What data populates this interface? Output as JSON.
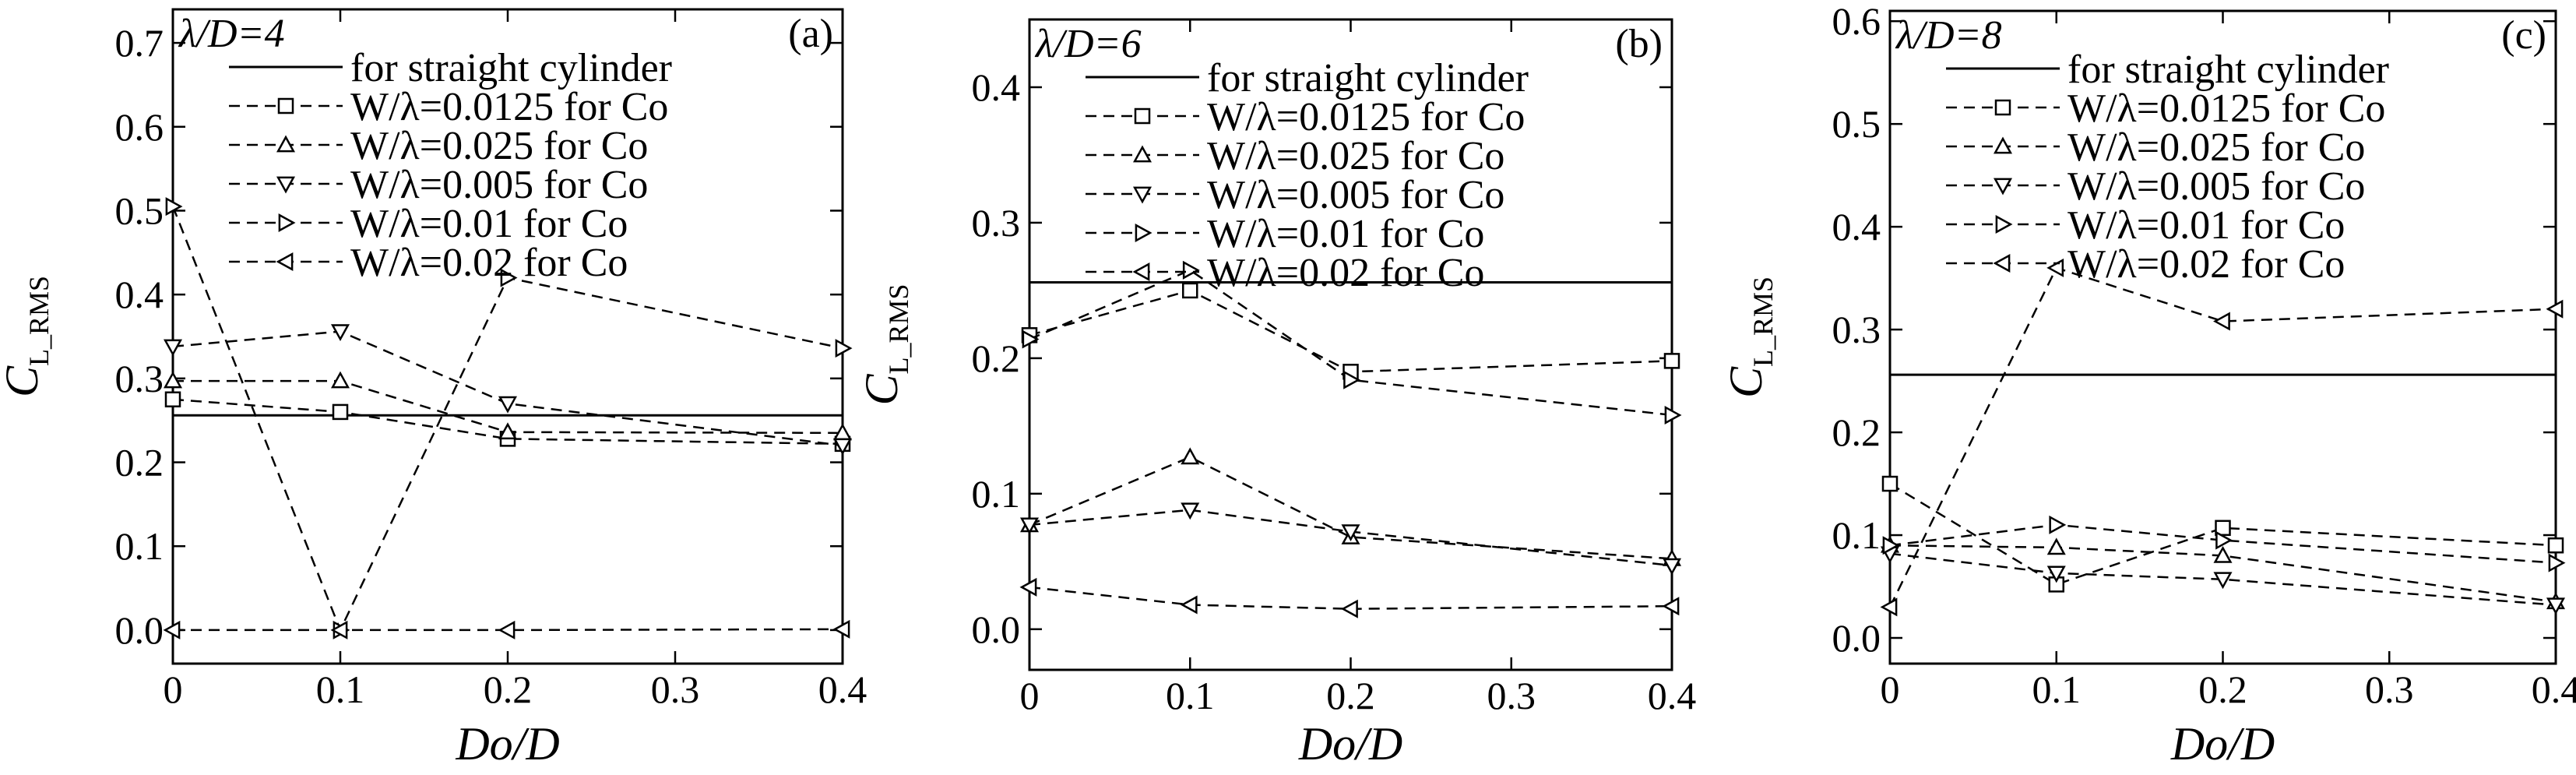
{
  "chart_data": [
    {
      "type": "line",
      "title": "λ/D=4",
      "panel_label": "(a)",
      "xlabel": "Do/D",
      "ylabel": "C",
      "ylabel_sub": "L_RMS",
      "xlim": [
        0,
        0.4
      ],
      "ylim": [
        -0.04,
        0.74
      ],
      "xticks": [
        0,
        0.1,
        0.2,
        0.3,
        0.4
      ],
      "xtick_labels": [
        "0",
        "0.1",
        "0.2",
        "0.3",
        "0.4"
      ],
      "yticks": [
        0,
        0.1,
        0.2,
        0.3,
        0.4,
        0.5,
        0.6,
        0.7
      ],
      "ytick_labels": [
        "0.0",
        "0.1",
        "0.2",
        "0.3",
        "0.4",
        "0.5",
        "0.6",
        "0.7"
      ],
      "grid": false,
      "legend_position": "top-right",
      "reference_line": {
        "name": "for straight cylinder",
        "y": 0.256
      },
      "x": [
        0,
        0.1,
        0.2,
        0.4
      ],
      "series": [
        {
          "name": "W/λ=0.0125 for Co",
          "marker": "square",
          "values": [
            0.275,
            0.26,
            0.228,
            0.222
          ]
        },
        {
          "name": "W/λ=0.025 for Co",
          "marker": "triangle-up",
          "values": [
            0.297,
            0.297,
            0.236,
            0.235
          ]
        },
        {
          "name": "W/λ=0.005 for Co",
          "marker": "triangle-down",
          "values": [
            0.338,
            0.356,
            0.27,
            0.22
          ]
        },
        {
          "name": "W/λ=0.01 for Co",
          "marker": "triangle-right",
          "values": [
            0.505,
            0.0,
            0.42,
            0.336
          ]
        },
        {
          "name": "W/λ=0.02 for Co",
          "marker": "triangle-left",
          "values": [
            0.0,
            0.0,
            0.0,
            0.001
          ]
        }
      ]
    },
    {
      "type": "line",
      "title": "λ/D=6",
      "panel_label": "(b)",
      "xlabel": "Do/D",
      "ylabel": "C",
      "ylabel_sub": "L_RMS",
      "xlim": [
        0,
        0.4
      ],
      "ylim": [
        -0.03,
        0.45
      ],
      "xticks": [
        0,
        0.1,
        0.2,
        0.3,
        0.4
      ],
      "xtick_labels": [
        "0",
        "0.1",
        "0.2",
        "0.3",
        "0.4"
      ],
      "yticks": [
        0,
        0.1,
        0.2,
        0.3,
        0.4
      ],
      "ytick_labels": [
        "0.0",
        "0.1",
        "0.2",
        "0.3",
        "0.4"
      ],
      "grid": false,
      "legend_position": "top-right",
      "reference_line": {
        "name": "for straight cylinder",
        "y": 0.256
      },
      "x": [
        0,
        0.1,
        0.2,
        0.4
      ],
      "series": [
        {
          "name": "W/λ=0.0125 for Co",
          "marker": "square",
          "values": [
            0.217,
            0.25,
            0.19,
            0.198
          ]
        },
        {
          "name": "W/λ=0.025 for Co",
          "marker": "triangle-up",
          "values": [
            0.077,
            0.127,
            0.068,
            0.052
          ]
        },
        {
          "name": "W/λ=0.005 for Co",
          "marker": "triangle-down",
          "values": [
            0.077,
            0.088,
            0.072,
            0.047
          ]
        },
        {
          "name": "W/λ=0.01 for Co",
          "marker": "triangle-right",
          "values": [
            0.214,
            0.265,
            0.184,
            0.158
          ]
        },
        {
          "name": "W/λ=0.02 for Co",
          "marker": "triangle-left",
          "values": [
            0.031,
            0.018,
            0.015,
            0.017
          ]
        }
      ]
    },
    {
      "type": "line",
      "title": "λ/D=8",
      "panel_label": "(c)",
      "xlabel": "Do/D",
      "ylabel": "C",
      "ylabel_sub": "L_RMS",
      "xlim": [
        0,
        0.4
      ],
      "ylim": [
        -0.025,
        0.61
      ],
      "xticks": [
        0,
        0.1,
        0.2,
        0.3,
        0.4
      ],
      "xtick_labels": [
        "0",
        "0.1",
        "0.2",
        "0.3",
        "0.4"
      ],
      "yticks": [
        0,
        0.1,
        0.2,
        0.3,
        0.4,
        0.5,
        0.6
      ],
      "ytick_labels": [
        "0.0",
        "0.1",
        "0.2",
        "0.3",
        "0.4",
        "0.5",
        "0.6"
      ],
      "grid": false,
      "legend_position": "top-right",
      "reference_line": {
        "name": "for straight cylinder",
        "y": 0.256
      },
      "x": [
        0,
        0.1,
        0.2,
        0.4
      ],
      "series": [
        {
          "name": "W/λ=0.0125 for Co",
          "marker": "square",
          "values": [
            0.15,
            0.052,
            0.107,
            0.09
          ]
        },
        {
          "name": "W/λ=0.025 for Co",
          "marker": "triangle-up",
          "values": [
            0.09,
            0.088,
            0.08,
            0.035
          ]
        },
        {
          "name": "W/λ=0.005 for Co",
          "marker": "triangle-down",
          "values": [
            0.082,
            0.063,
            0.057,
            0.032
          ]
        },
        {
          "name": "W/λ=0.01 for Co",
          "marker": "triangle-right",
          "values": [
            0.09,
            0.11,
            0.095,
            0.073
          ]
        },
        {
          "name": "W/λ=0.02 for Co",
          "marker": "triangle-left",
          "values": [
            0.03,
            0.36,
            0.308,
            0.32
          ]
        }
      ]
    }
  ]
}
